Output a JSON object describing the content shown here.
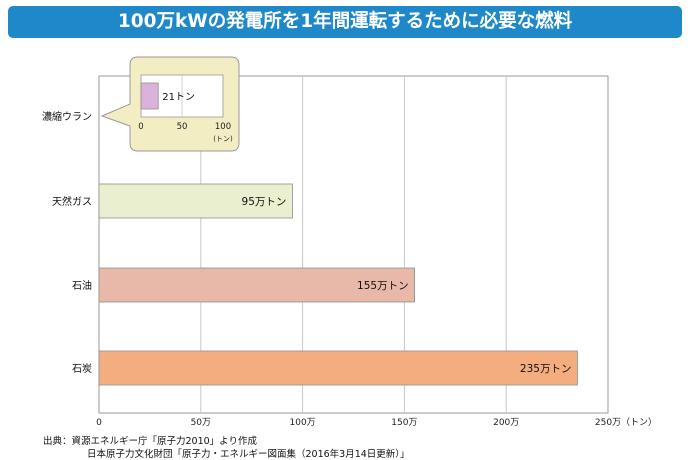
{
  "title": "100万kWの発電所を1年間運転するために必要な燃料",
  "colors": {
    "title_bg": "#1e88c9",
    "grid": "#c8c8c8",
    "natural_gas": "#e9efcf",
    "oil": "#e8b8a8",
    "coal": "#f4ad7f",
    "uranium": "#d9b3da",
    "inset_bg": "#f3edc4"
  },
  "chart_data": {
    "type": "bar",
    "orientation": "horizontal",
    "categories": [
      "濃縮ウラン",
      "天然ガス",
      "石油",
      "石炭"
    ],
    "values": [
      0.0021,
      95,
      155,
      235
    ],
    "value_labels": [
      "21トン",
      "95万トン",
      "155万トン",
      "235万トン"
    ],
    "xlim": [
      0,
      250
    ],
    "x_ticks": [
      "0",
      "50万",
      "100万",
      "150万",
      "200万",
      "250万"
    ],
    "x_unit": "（トン）",
    "grid": true,
    "inset": {
      "category": "濃縮ウラン",
      "value": 21,
      "value_label": "21トン",
      "xlim": [
        0,
        100
      ],
      "x_ticks": [
        "0",
        "50",
        "100"
      ],
      "x_unit": "(トン)"
    }
  },
  "source": {
    "line1": "出典：資源エネルギー庁「原子力2010」より作成",
    "line2": "日本原子力文化財団「原子力・エネルギー図面集（2016年3月14日更新）」"
  }
}
